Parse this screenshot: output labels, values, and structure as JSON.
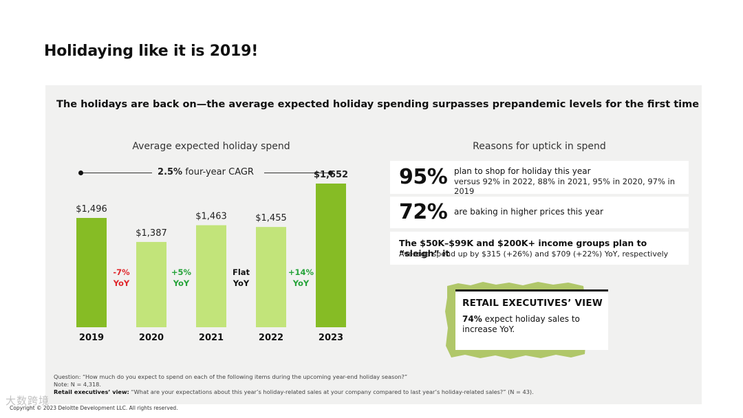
{
  "page": {
    "title": "Holidaying like it is 2019!",
    "subtitle": "The holidays are back on—the average expected holiday spending surpasses prepandemic levels for the first time"
  },
  "chart_data": {
    "type": "bar",
    "title": "Average expected holiday spend",
    "categories": [
      "2019",
      "2020",
      "2021",
      "2022",
      "2023"
    ],
    "values": [
      1496,
      1387,
      1463,
      1455,
      1652
    ],
    "value_labels": [
      "$1,496",
      "$1,387",
      "$1,463",
      "$1,455",
      "$1,652"
    ],
    "ylim": [
      0,
      1700
    ],
    "xlabel": "",
    "ylabel": "",
    "cagr": {
      "value": "2.5%",
      "label": "four-year CAGR"
    },
    "deltas": [
      {
        "line1": "-7%",
        "line2": "YoY",
        "color": "#e0262b"
      },
      {
        "line1": "+5%",
        "line2": "YoY",
        "color": "#26a33a"
      },
      {
        "line1": "Flat",
        "line2": "YoY",
        "color": "#111111"
      },
      {
        "line1": "+14%",
        "line2": "YoY",
        "color": "#26a33a"
      }
    ],
    "colors": {
      "dark": "#86bc25",
      "light": "#c2e47a"
    }
  },
  "reasons": {
    "title": "Reasons for uptick in spend",
    "card1": {
      "stat": "95%",
      "text": "plan to shop for holiday this year",
      "sub": "versus 92% in 2022, 88% in 2021, 95% in 2020, 97% in 2019"
    },
    "card2": {
      "stat": "72%",
      "text": "are baking in higher prices this year"
    },
    "card3": {
      "headline": "The $50K–$99K and $200K+ income groups plan to “sleigh” it",
      "detail": "Average spend up by $315 (+26%) and $709 (+22%) YoY, respectively"
    }
  },
  "exec_view": {
    "title": "RETAIL EXECUTIVES’ VIEW",
    "stat": "74%",
    "text": "expect holiday sales to increase YoY."
  },
  "footnotes": {
    "question": "Question: “How much do you expect to spend on each of the following items during the upcoming year-end holiday season?”",
    "note": "Note: N = 4,318.",
    "exec_label": "Retail executives’ view:",
    "exec_text": "“What are your expectations about this year’s holiday-related sales at your company compared to last year’s holiday-related sales?” (N = 43).",
    "copyright": "Copyright © 2023 Deloitte Development LLC. All rights reserved.",
    "watermark": "大数跨境"
  },
  "colors": {
    "panel_bg": "#f1f1f0",
    "torn_green": "#a8c25a"
  }
}
